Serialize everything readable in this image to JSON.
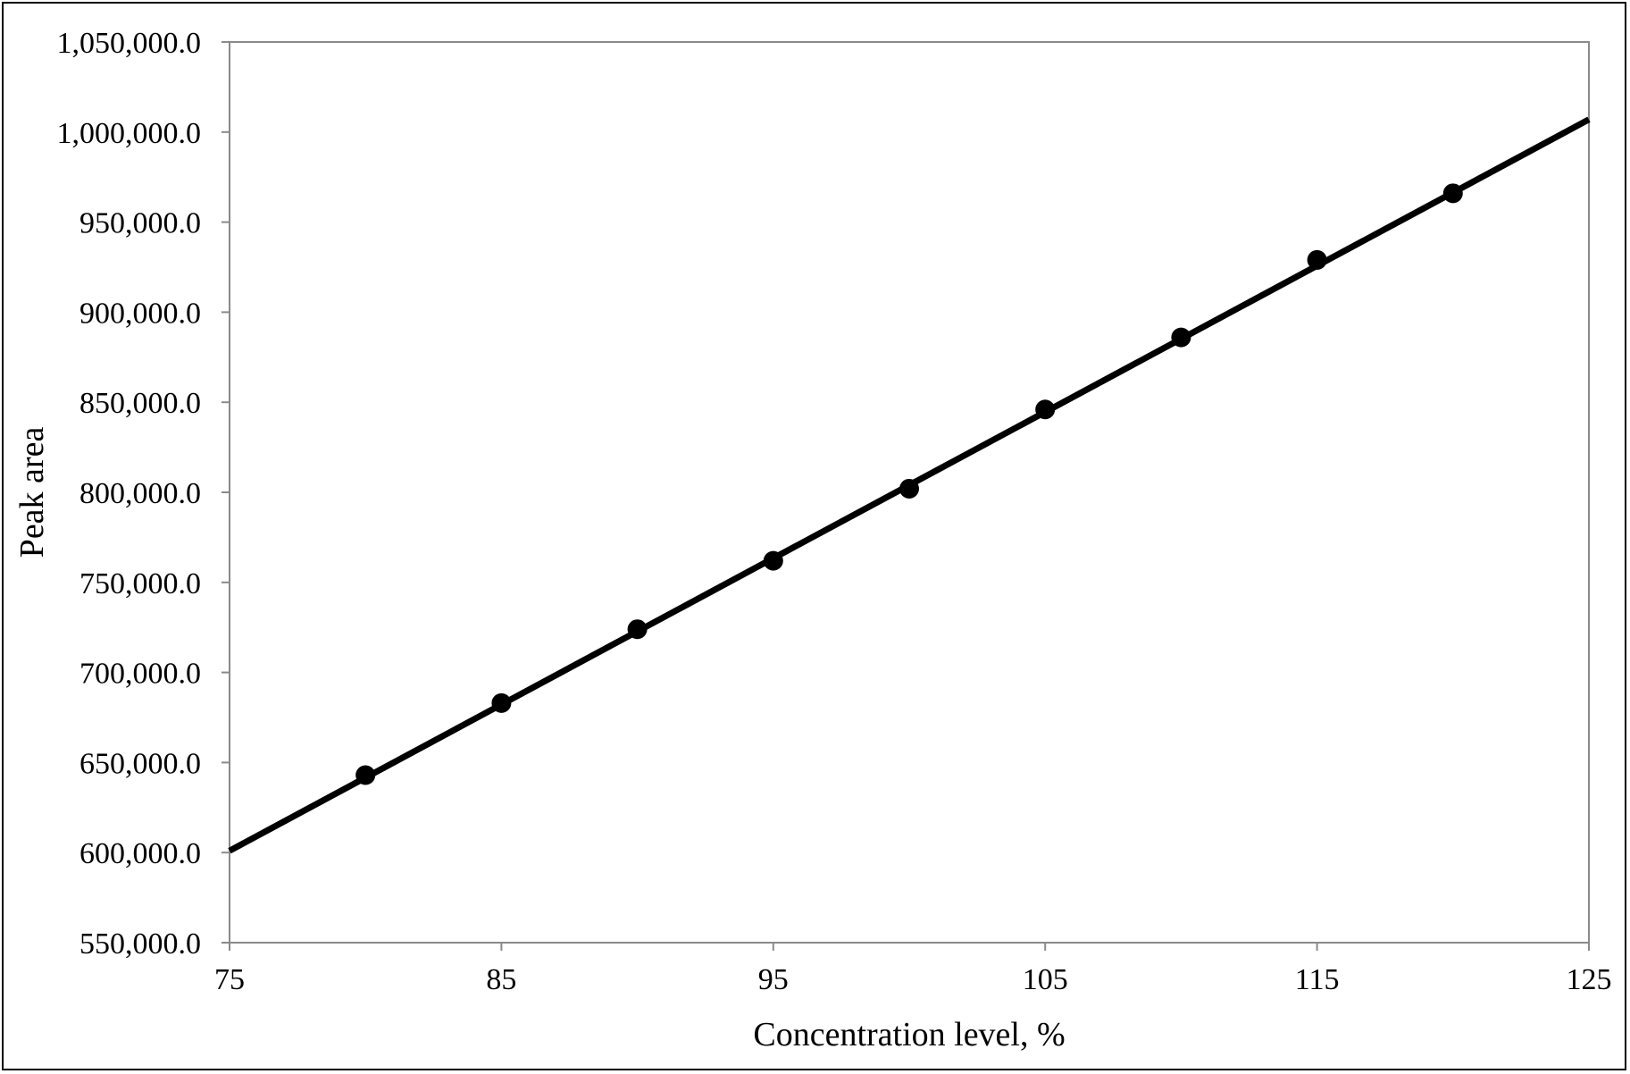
{
  "chart_data": {
    "type": "scatter",
    "title": "",
    "xlabel": "Concentration level, %",
    "ylabel": "Peak area",
    "xlim": [
      75,
      125
    ],
    "ylim": [
      550000,
      1050000
    ],
    "x_ticks": [
      75,
      85,
      95,
      105,
      115,
      125
    ],
    "x_tick_labels": [
      "75",
      "85",
      "95",
      "105",
      "115",
      "125"
    ],
    "y_ticks": [
      550000,
      600000,
      650000,
      700000,
      750000,
      800000,
      850000,
      900000,
      950000,
      1000000,
      1050000
    ],
    "y_tick_labels": [
      "550,000.0",
      "600,000.0",
      "650,000.0",
      "700,000.0",
      "750,000.0",
      "800,000.0",
      "850,000.0",
      "900,000.0",
      "950,000.0",
      "1,000,000.0",
      "1,050,000.0"
    ],
    "grid": false,
    "legend": "none",
    "series": [
      {
        "x": [
          80,
          85,
          90,
          95,
          100,
          105,
          110,
          115,
          120
        ],
        "y": [
          643000,
          683000,
          724000,
          762000,
          802000,
          846000,
          886000,
          929000,
          966000
        ],
        "marker": "circle",
        "color": "#000000"
      }
    ],
    "trendline": {
      "type": "linear",
      "x": [
        75,
        125
      ],
      "y": [
        601000,
        1007000
      ],
      "color": "#000000"
    }
  }
}
